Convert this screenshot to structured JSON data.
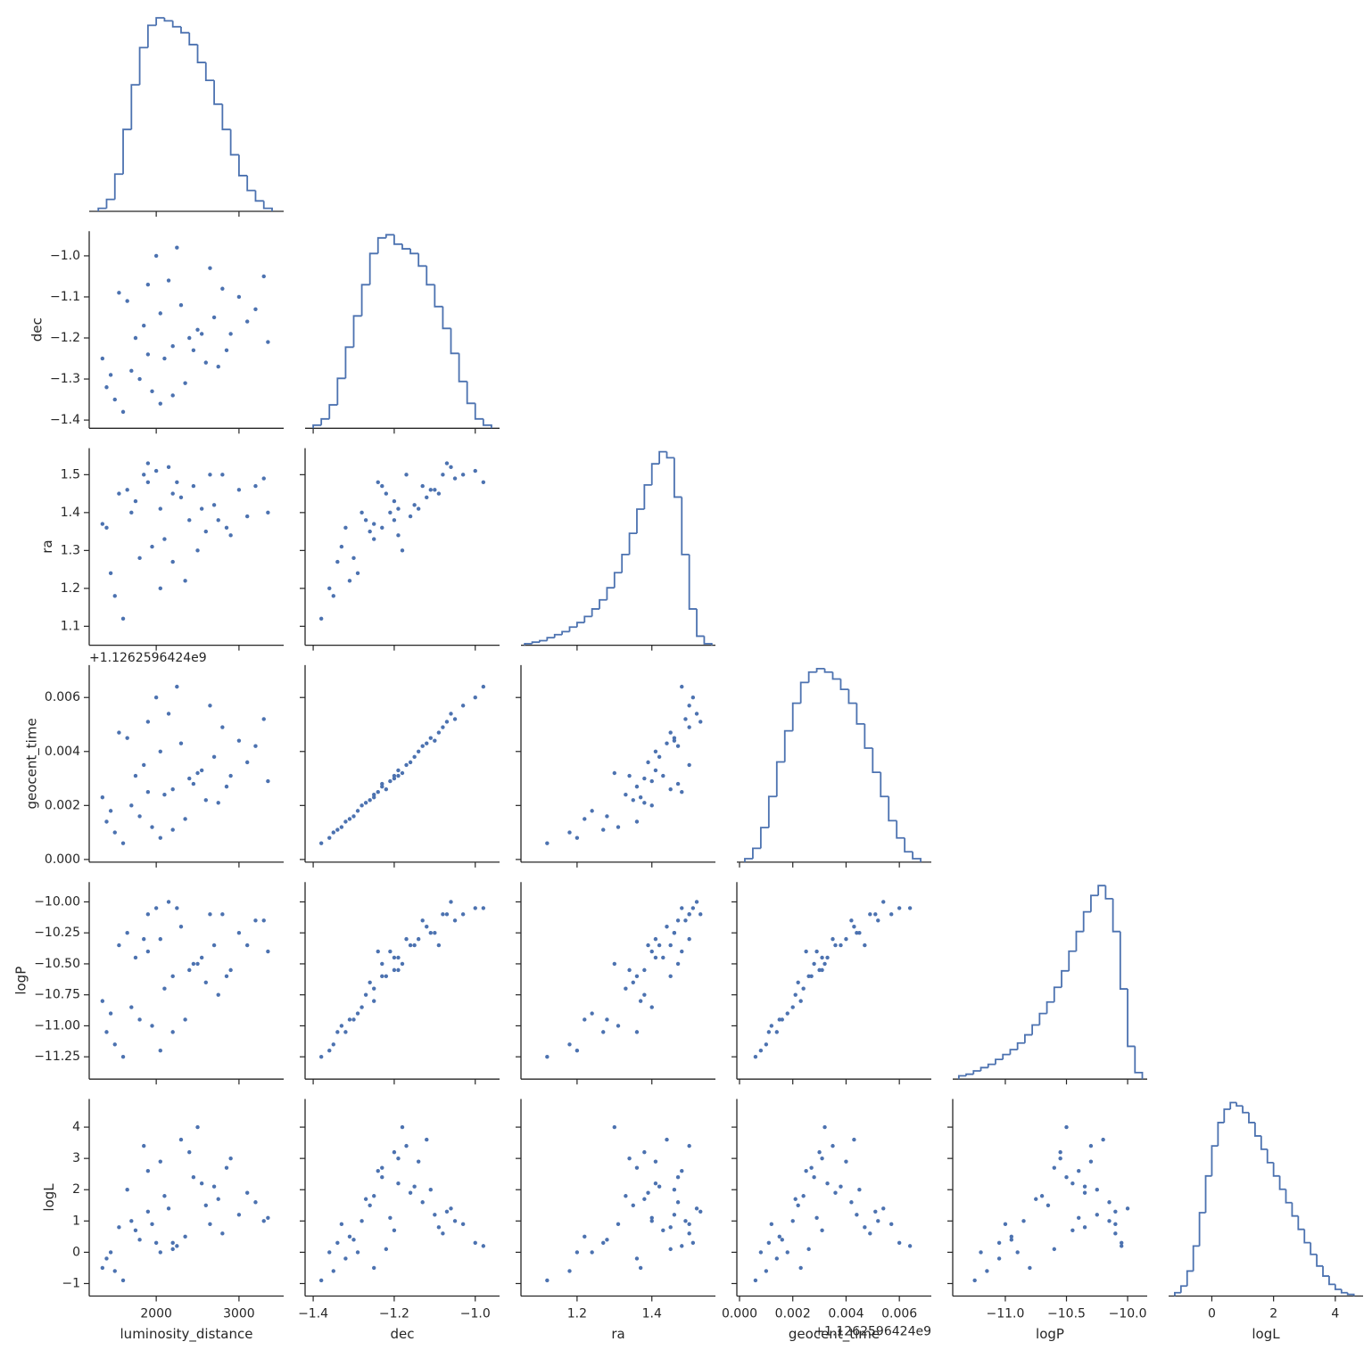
{
  "chart_data": {
    "type": "pairplot",
    "color": "#4c72b0",
    "variables": [
      {
        "name": "luminosity_distance",
        "lim": [
          1190,
          3540
        ],
        "xticks": [
          2000,
          3000
        ],
        "yticks": [],
        "bins": [
          1300,
          1400,
          1500,
          1600,
          1700,
          1800,
          1900,
          2000,
          2100,
          2200,
          2300,
          2400,
          2500,
          2600,
          2700,
          2800,
          2900,
          3000,
          3100,
          3200,
          3300,
          3400
        ],
        "counts": [
          2,
          8,
          25,
          55,
          85,
          110,
          125,
          130,
          128,
          124,
          120,
          112,
          100,
          88,
          72,
          55,
          38,
          24,
          14,
          7,
          2
        ],
        "samples": [
          1500,
          1800,
          2100,
          2400,
          2700,
          3000,
          3300,
          2000,
          1700,
          2200,
          2500,
          1400,
          1900,
          2300,
          2800,
          1600,
          2050,
          2600,
          1750,
          3100,
          2150,
          1450,
          2450,
          1950,
          2900,
          2250,
          1650,
          3350,
          2350,
          1850,
          2750,
          1550,
          2050,
          2650,
          3200,
          1350,
          2550,
          1900,
          2200,
          2850
        ]
      },
      {
        "name": "dec",
        "lim": [
          -1.42,
          -0.94
        ],
        "xticks": [
          {
            "value": -1.4,
            "label": "−1.4"
          },
          {
            "value": -1.2,
            "label": "−1.2"
          },
          {
            "value": -1.0,
            "label": "−1.0"
          }
        ],
        "yticks": [
          {
            "value": -1.0,
            "label": "−1.0"
          },
          {
            "value": -1.1,
            "label": "−1.1"
          },
          {
            "value": -1.2,
            "label": "−1.2"
          },
          {
            "value": -1.3,
            "label": "−1.3"
          },
          {
            "value": -1.4,
            "label": "−1.4"
          }
        ],
        "bins": [
          -1.4,
          -1.38,
          -1.36,
          -1.34,
          -1.32,
          -1.3,
          -1.28,
          -1.26,
          -1.24,
          -1.22,
          -1.2,
          -1.18,
          -1.16,
          -1.14,
          -1.12,
          -1.1,
          -1.08,
          -1.06,
          -1.04,
          -1.02,
          -1.0,
          -0.98,
          -0.96
        ],
        "counts": [
          2,
          6,
          15,
          32,
          52,
          72,
          92,
          112,
          122,
          124,
          118,
          115,
          112,
          104,
          92,
          78,
          64,
          48,
          30,
          16,
          6,
          2
        ],
        "samples": [
          -1.35,
          -1.3,
          -1.25,
          -1.2,
          -1.15,
          -1.1,
          -1.05,
          -1.0,
          -1.28,
          -1.22,
          -1.18,
          -1.32,
          -1.24,
          -1.12,
          -1.08,
          -1.38,
          -1.14,
          -1.26,
          -1.2,
          -1.16,
          -1.06,
          -1.29,
          -1.23,
          -1.33,
          -1.19,
          -0.98,
          -1.11,
          -1.21,
          -1.31,
          -1.17,
          -1.27,
          -1.09,
          -1.36,
          -1.03,
          -1.13,
          -1.25,
          -1.19,
          -1.07,
          -1.34,
          -1.23
        ]
      },
      {
        "name": "ra",
        "lim": [
          1.05,
          1.57
        ],
        "xticks": [
          1.2,
          1.4
        ],
        "yticks": [
          1.1,
          1.2,
          1.3,
          1.4,
          1.5
        ],
        "bins": [
          1.06,
          1.08,
          1.1,
          1.12,
          1.14,
          1.16,
          1.18,
          1.2,
          1.22,
          1.24,
          1.26,
          1.28,
          1.3,
          1.32,
          1.34,
          1.36,
          1.38,
          1.4,
          1.42,
          1.44,
          1.46,
          1.48,
          1.5,
          1.52,
          1.54,
          1.56
        ],
        "counts": [
          1,
          2,
          3,
          5,
          7,
          9,
          12,
          15,
          19,
          24,
          30,
          38,
          48,
          60,
          74,
          90,
          106,
          120,
          128,
          124,
          98,
          60,
          24,
          6,
          1
        ],
        "samples": [
          1.18,
          1.28,
          1.33,
          1.38,
          1.42,
          1.46,
          1.49,
          1.51,
          1.4,
          1.45,
          1.3,
          1.36,
          1.48,
          1.44,
          1.5,
          1.12,
          1.41,
          1.35,
          1.43,
          1.39,
          1.52,
          1.24,
          1.47,
          1.31,
          1.34,
          1.48,
          1.46,
          1.4,
          1.22,
          1.5,
          1.38,
          1.45,
          1.2,
          1.5,
          1.47,
          1.37,
          1.41,
          1.53,
          1.27,
          1.36
        ]
      },
      {
        "name": "geocent_time",
        "lim": [
          -0.0001,
          0.0072
        ],
        "offset_text": "+1.1262596424e9",
        "xticks": [
          {
            "value": 0,
            "label": "0.000"
          },
          {
            "value": 0.002,
            "label": "0.002"
          },
          {
            "value": 0.004,
            "label": "0.004"
          },
          {
            "value": 0.006,
            "label": "0.006"
          }
        ],
        "yticks": [
          {
            "value": 0,
            "label": "0.000"
          },
          {
            "value": 0.002,
            "label": "0.002"
          },
          {
            "value": 0.004,
            "label": "0.004"
          },
          {
            "value": 0.006,
            "label": "0.006"
          }
        ],
        "bins": [
          0.0002,
          0.0005,
          0.0008,
          0.0011,
          0.0014,
          0.0017,
          0.002,
          0.0023,
          0.0026,
          0.0029,
          0.0032,
          0.0035,
          0.0038,
          0.0041,
          0.0044,
          0.0047,
          0.005,
          0.0053,
          0.0056,
          0.0059,
          0.0062,
          0.0065,
          0.0068
        ],
        "counts": [
          2,
          8,
          20,
          38,
          58,
          76,
          92,
          104,
          110,
          112,
          110,
          106,
          100,
          92,
          80,
          66,
          52,
          38,
          24,
          14,
          6,
          2
        ],
        "samples": [
          0.001,
          0.0016,
          0.0024,
          0.003,
          0.0038,
          0.0044,
          0.0052,
          0.006,
          0.002,
          0.0026,
          0.0032,
          0.0014,
          0.0025,
          0.0043,
          0.0049,
          0.0006,
          0.004,
          0.0022,
          0.0031,
          0.0036,
          0.0054,
          0.0018,
          0.0028,
          0.0012,
          0.0031,
          0.0064,
          0.0045,
          0.0029,
          0.0015,
          0.0035,
          0.0021,
          0.0047,
          0.0008,
          0.0057,
          0.0042,
          0.0023,
          0.0033,
          0.0051,
          0.0011,
          0.0027
        ]
      },
      {
        "name": "logP",
        "lim": [
          -11.43,
          -9.84
        ],
        "xticks": [
          {
            "value": -11.0,
            "label": "−11.0"
          },
          {
            "value": -10.5,
            "label": "−10.5"
          },
          {
            "value": -10.0,
            "label": "−10.0"
          }
        ],
        "yticks": [
          {
            "value": -10.0,
            "label": "−10.00"
          },
          {
            "value": -10.25,
            "label": "−10.25"
          },
          {
            "value": -10.5,
            "label": "−10.50"
          },
          {
            "value": -10.75,
            "label": "−10.75"
          },
          {
            "value": -11.0,
            "label": "−11.00"
          },
          {
            "value": -11.25,
            "label": "−11.25"
          }
        ],
        "bins": [
          -11.38,
          -11.32,
          -11.26,
          -11.2,
          -11.14,
          -11.08,
          -11.02,
          -10.96,
          -10.9,
          -10.84,
          -10.78,
          -10.72,
          -10.66,
          -10.6,
          -10.54,
          -10.48,
          -10.42,
          -10.36,
          -10.3,
          -10.24,
          -10.18,
          -10.12,
          -10.06,
          -10.0,
          -9.94,
          -9.88
        ],
        "counts": [
          2,
          3,
          5,
          7,
          9,
          12,
          15,
          18,
          22,
          27,
          33,
          40,
          47,
          56,
          66,
          78,
          90,
          102,
          112,
          118,
          110,
          90,
          55,
          20,
          4
        ],
        "samples": [
          -11.15,
          -10.95,
          -10.7,
          -10.55,
          -10.35,
          -10.25,
          -10.15,
          -10.05,
          -10.85,
          -10.6,
          -10.5,
          -11.05,
          -10.4,
          -10.2,
          -10.1,
          -11.25,
          -10.3,
          -10.65,
          -10.45,
          -10.35,
          -10.0,
          -10.9,
          -10.5,
          -11.0,
          -10.55,
          -10.05,
          -10.25,
          -10.4,
          -10.95,
          -10.3,
          -10.75,
          -10.35,
          -11.2,
          -10.1,
          -10.15,
          -10.8,
          -10.45,
          -10.1,
          -11.05,
          -10.6
        ]
      },
      {
        "name": "logL",
        "lim": [
          -1.4,
          4.9
        ],
        "xticks": [
          0,
          2,
          4
        ],
        "yticks": [
          {
            "value": -1,
            "label": "−1"
          },
          0,
          1,
          2,
          3,
          4
        ],
        "bins": [
          -1.2,
          -1.0,
          -0.8,
          -0.6,
          -0.4,
          -0.2,
          0.0,
          0.2,
          0.4,
          0.6,
          0.8,
          1.0,
          1.2,
          1.4,
          1.6,
          1.8,
          2.0,
          2.2,
          2.4,
          2.6,
          2.8,
          3.0,
          3.2,
          3.4,
          3.6,
          3.8,
          4.0,
          4.2,
          4.4,
          4.6
        ],
        "counts": [
          2,
          6,
          15,
          30,
          50,
          72,
          90,
          104,
          112,
          116,
          114,
          110,
          104,
          96,
          88,
          80,
          72,
          64,
          56,
          48,
          40,
          32,
          25,
          18,
          12,
          7,
          4,
          2,
          1
        ],
        "samples": [
          -0.6,
          0.4,
          1.8,
          3.2,
          2.1,
          1.2,
          1.0,
          0.3,
          1.0,
          0.1,
          4.0,
          -0.2,
          2.6,
          3.6,
          0.6,
          -0.9,
          2.9,
          1.5,
          0.7,
          1.9,
          1.4,
          0.0,
          2.4,
          0.9,
          3.0,
          0.2,
          2.0,
          1.1,
          0.5,
          3.4,
          1.7,
          0.8,
          0.0,
          0.9,
          1.6,
          -0.5,
          2.2,
          1.3,
          0.3,
          2.7
        ]
      }
    ]
  }
}
